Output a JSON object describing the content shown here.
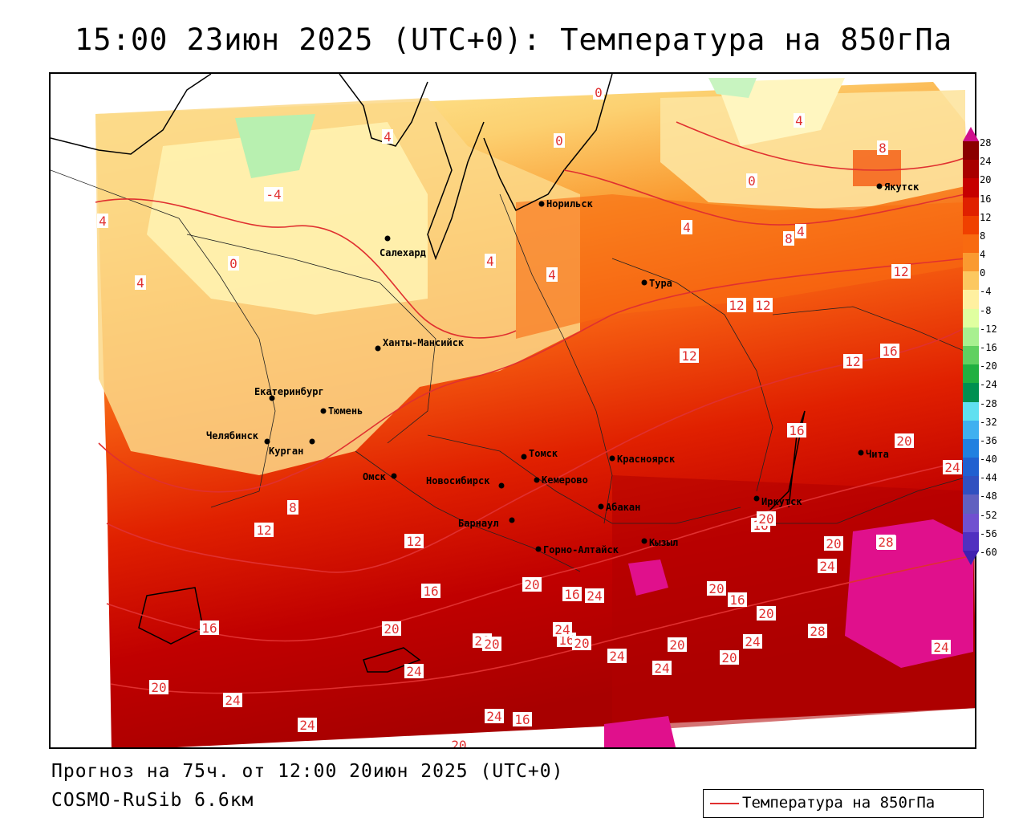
{
  "title": "15:00 23июн 2025 (UTC+0): Температура на 850гПа",
  "footer": {
    "forecast": "Прогноз на 75ч. от 12:00 20июн 2025 (UTC+0)",
    "model": "COSMO-RuSib 6.6км"
  },
  "legend": {
    "label": "Температура на 850гПа",
    "line_color": "#e03030"
  },
  "colorbar": {
    "ticks": [
      "28",
      "24",
      "20",
      "16",
      "12",
      "8",
      "4",
      "0",
      "-4",
      "-8",
      "-12",
      "-16",
      "-20",
      "-24",
      "-28",
      "-32",
      "-36",
      "-40",
      "-44",
      "-48",
      "-52",
      "-56",
      "-60"
    ],
    "colors": [
      "#8b0000",
      "#a80000",
      "#c60000",
      "#e02000",
      "#f04000",
      "#f86a10",
      "#fa9a30",
      "#fcc860",
      "#fff0a0",
      "#e0ffa0",
      "#a8f090",
      "#60d060",
      "#20b040",
      "#009050",
      "#60e0f0",
      "#40b0f0",
      "#2080e0",
      "#2060d0",
      "#3050c0",
      "#6060c0",
      "#7050d0",
      "#5030c0",
      "#4020b0"
    ]
  },
  "cities": [
    {
      "name": "Норильск"
    },
    {
      "name": "Якутск"
    },
    {
      "name": "Салехард"
    },
    {
      "name": "Тура"
    },
    {
      "name": "Ханты-Мансийск"
    },
    {
      "name": "Екатеринбург"
    },
    {
      "name": "Тюмень"
    },
    {
      "name": "Челябинск"
    },
    {
      "name": "Курган"
    },
    {
      "name": "Томск"
    },
    {
      "name": "Красноярск"
    },
    {
      "name": "Омск"
    },
    {
      "name": "Новосибирск"
    },
    {
      "name": "Кемерово"
    },
    {
      "name": "Барнаул"
    },
    {
      "name": "Абакан"
    },
    {
      "name": "Иркутск"
    },
    {
      "name": "Чита"
    },
    {
      "name": "Горно-Алтайск"
    },
    {
      "name": "Кызыл"
    }
  ],
  "contour_labels": [
    "0",
    "4",
    "4",
    "0",
    "8",
    "-4",
    "4",
    "0",
    "4",
    "4",
    "0",
    "4",
    "8",
    "4",
    "12",
    "12",
    "12",
    "12",
    "16",
    "16",
    "20",
    "24",
    "8",
    "12",
    "12",
    "16",
    "16",
    "20",
    "20",
    "16",
    "20",
    "24",
    "28",
    "24",
    "20",
    "24",
    "24",
    "20",
    "16",
    "20",
    "20",
    "28",
    "24",
    "24",
    "20",
    "24",
    "20",
    "24",
    "28",
    "16",
    "20",
    "24",
    "24",
    "20",
    "16",
    "24",
    "20",
    "24",
    "16",
    "20",
    "12",
    "4",
    "16"
  ]
}
